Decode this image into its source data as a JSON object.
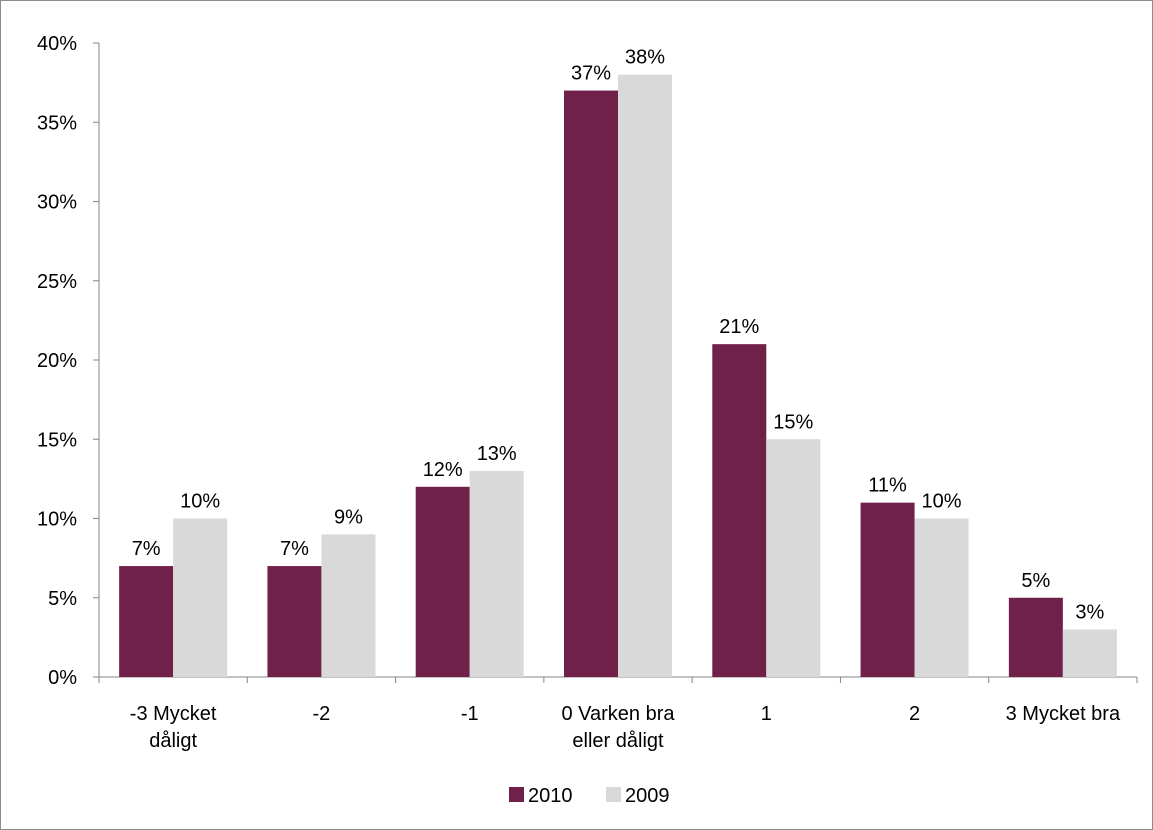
{
  "chart_data": {
    "type": "bar",
    "title": "",
    "xlabel": "",
    "ylabel": "",
    "categories": [
      [
        "-3 Mycket",
        "dåligt"
      ],
      [
        "-2"
      ],
      [
        "-1"
      ],
      [
        "0 Varken bra",
        "eller dåligt"
      ],
      [
        "1"
      ],
      [
        "2"
      ],
      [
        "3 Mycket bra"
      ]
    ],
    "series": [
      {
        "name": "2010",
        "color": "#70214a",
        "values": [
          7,
          7,
          12,
          37,
          21,
          11,
          5
        ],
        "labels": [
          "7%",
          "7%",
          "12%",
          "37%",
          "21%",
          "11%",
          "5%"
        ]
      },
      {
        "name": "2009",
        "color": "#d9d9d9",
        "values": [
          10,
          9,
          13,
          38,
          15,
          10,
          3
        ],
        "labels": [
          "10%",
          "9%",
          "13%",
          "38%",
          "15%",
          "10%",
          "3%"
        ]
      }
    ],
    "ylim": [
      0,
      40
    ],
    "yticks": [
      0,
      5,
      10,
      15,
      20,
      25,
      30,
      35,
      40
    ],
    "ytick_labels": [
      "0%",
      "5%",
      "10%",
      "15%",
      "20%",
      "25%",
      "30%",
      "35%",
      "40%"
    ],
    "grid": false,
    "legend": {
      "position": "bottom",
      "entries": [
        "2010",
        "2009"
      ]
    },
    "axis_color": "#868686"
  }
}
